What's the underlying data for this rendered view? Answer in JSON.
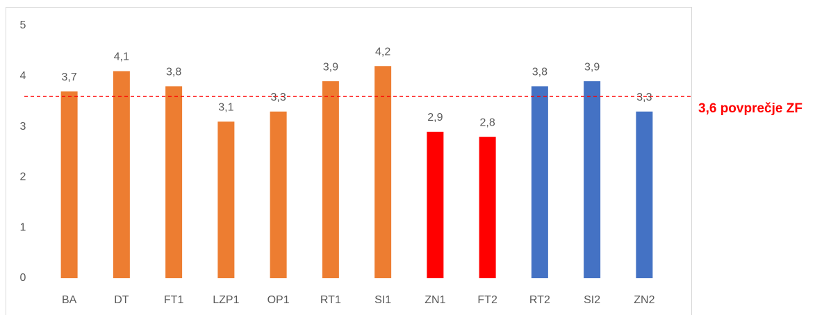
{
  "chart_data": {
    "type": "bar",
    "categories": [
      "BA",
      "DT",
      "FT1",
      "LZP1",
      "OP1",
      "RT1",
      "SI1",
      "ZN1",
      "FT2",
      "RT2",
      "SI2",
      "ZN2"
    ],
    "values": [
      3.7,
      4.1,
      3.8,
      3.1,
      3.3,
      3.9,
      4.2,
      2.9,
      2.8,
      3.8,
      3.9,
      3.3
    ],
    "value_labels": [
      "3,7",
      "4,1",
      "3,8",
      "3,1",
      "3,3",
      "3,9",
      "4,2",
      "2,9",
      "2,8",
      "3,8",
      "3,9",
      "3,3"
    ],
    "colors": [
      "#ed7d31",
      "#ed7d31",
      "#ed7d31",
      "#ed7d31",
      "#ed7d31",
      "#ed7d31",
      "#ed7d31",
      "#ff0000",
      "#ff0000",
      "#4472c4",
      "#4472c4",
      "#4472c4"
    ],
    "ylim": [
      0,
      5
    ],
    "yticks": [
      0,
      1,
      2,
      3,
      4,
      5
    ],
    "grid": false,
    "reference_line": {
      "value": 3.6,
      "label": "3,6 povprečje ZF",
      "color": "#ff0000"
    }
  }
}
